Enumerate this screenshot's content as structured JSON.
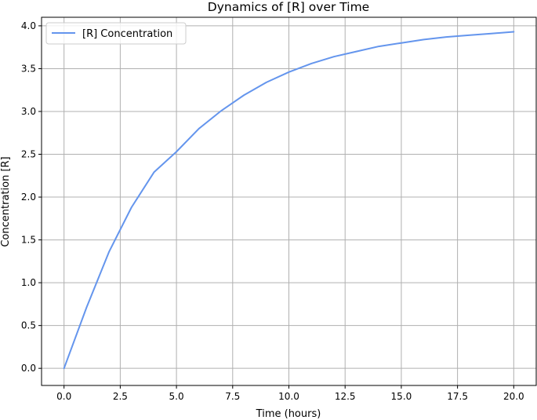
{
  "chart_data": {
    "type": "line",
    "title": "Dynamics of [R] over Time",
    "xlabel": "Time (hours)",
    "ylabel": "Concentration [R]",
    "xlim": [
      -1.0,
      21.0
    ],
    "ylim": [
      -0.2,
      4.1
    ],
    "x_ticks": [
      0.0,
      2.5,
      5.0,
      7.5,
      10.0,
      12.5,
      15.0,
      17.5,
      20.0
    ],
    "x_tick_labels": [
      "0.0",
      "2.5",
      "5.0",
      "7.5",
      "10.0",
      "12.5",
      "15.0",
      "17.5",
      "20.0"
    ],
    "y_ticks": [
      0.0,
      0.5,
      1.0,
      1.5,
      2.0,
      2.5,
      3.0,
      3.5,
      4.0
    ],
    "y_tick_labels": [
      "0.0",
      "0.5",
      "1.0",
      "1.5",
      "2.0",
      "2.5",
      "3.0",
      "3.5",
      "4.0"
    ],
    "grid": true,
    "legend_position": "top-left",
    "series": [
      {
        "name": "[R] Concentration",
        "color": "#6495ED",
        "x": [
          0,
          1,
          2,
          3,
          4,
          5,
          6,
          7,
          8,
          9,
          10,
          11,
          12,
          13,
          14,
          15,
          16,
          17,
          18,
          19,
          20
        ],
        "y": [
          0.0,
          0.71,
          1.36,
          1.88,
          2.29,
          2.53,
          2.8,
          3.01,
          3.19,
          3.34,
          3.46,
          3.56,
          3.64,
          3.7,
          3.76,
          3.8,
          3.84,
          3.87,
          3.89,
          3.91,
          3.93
        ]
      }
    ]
  }
}
